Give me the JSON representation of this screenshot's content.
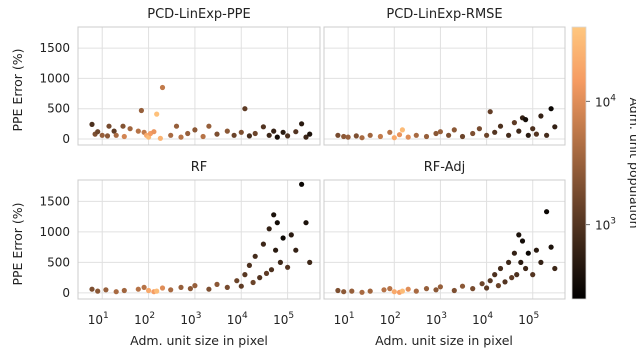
{
  "chart_data": {
    "type": "scatter",
    "x_scale": "log",
    "xlim": [
      3,
      500000
    ],
    "ylim": [
      -100,
      1850
    ],
    "x_ticks": [
      10,
      100,
      1000,
      10000,
      100000
    ],
    "y_ticks": [
      0,
      500,
      1000,
      1500
    ],
    "xlabel": "Adm. unit size in pixel",
    "ylabel": "PPE Error (%)",
    "grid": true,
    "colorbar": {
      "label": "Adm. unit population",
      "scale": "log",
      "range": [
        250,
        40000
      ],
      "ticks": [
        {
          "value": 1000,
          "base": "10",
          "exp": "3"
        },
        {
          "value": 10000,
          "base": "10",
          "exp": "4"
        }
      ],
      "colormap": "copper",
      "colors": [
        "#000000",
        "#3c2618",
        "#7a4d30",
        "#b97548",
        "#f59b62",
        "#ffc77f"
      ]
    },
    "panels": [
      {
        "title": "PCD-LinExp-PPE",
        "points": [
          [
            6,
            240,
            900
          ],
          [
            7,
            80,
            2000
          ],
          [
            8,
            120,
            1500
          ],
          [
            10,
            60,
            3000
          ],
          [
            13,
            50,
            2500
          ],
          [
            14,
            210,
            1800
          ],
          [
            18,
            130,
            1200
          ],
          [
            20,
            60,
            4000
          ],
          [
            28,
            210,
            2200
          ],
          [
            30,
            40,
            8000
          ],
          [
            40,
            170,
            3500
          ],
          [
            60,
            130,
            5000
          ],
          [
            70,
            470,
            3000
          ],
          [
            80,
            110,
            6000
          ],
          [
            90,
            60,
            20000
          ],
          [
            100,
            30,
            30000
          ],
          [
            110,
            90,
            15000
          ],
          [
            130,
            120,
            12000
          ],
          [
            150,
            410,
            35000
          ],
          [
            180,
            10,
            25000
          ],
          [
            200,
            850,
            6000
          ],
          [
            300,
            60,
            4000
          ],
          [
            400,
            210,
            3000
          ],
          [
            500,
            30,
            5000
          ],
          [
            700,
            90,
            3000
          ],
          [
            1000,
            150,
            2500
          ],
          [
            1500,
            40,
            5000
          ],
          [
            2000,
            210,
            3000
          ],
          [
            3000,
            80,
            2000
          ],
          [
            5000,
            130,
            2500
          ],
          [
            7000,
            60,
            1500
          ],
          [
            10000,
            110,
            2000
          ],
          [
            12000,
            500,
            1200
          ],
          [
            15000,
            50,
            800
          ],
          [
            20000,
            90,
            1500
          ],
          [
            30000,
            200,
            1000
          ],
          [
            40000,
            60,
            700
          ],
          [
            50000,
            130,
            600
          ],
          [
            60000,
            30,
            350
          ],
          [
            80000,
            110,
            500
          ],
          [
            100000,
            50,
            900
          ],
          [
            150000,
            120,
            1000
          ],
          [
            200000,
            250,
            500
          ],
          [
            250000,
            30,
            700
          ],
          [
            300000,
            80,
            400
          ]
        ]
      },
      {
        "title": "PCD-LinExp-RMSE",
        "points": [
          [
            6,
            60,
            1800
          ],
          [
            8,
            40,
            2500
          ],
          [
            10,
            30,
            3000
          ],
          [
            15,
            50,
            2000
          ],
          [
            20,
            20,
            4000
          ],
          [
            30,
            60,
            3500
          ],
          [
            50,
            40,
            6000
          ],
          [
            80,
            110,
            5000
          ],
          [
            100,
            20,
            20000
          ],
          [
            130,
            70,
            12000
          ],
          [
            150,
            150,
            30000
          ],
          [
            200,
            30,
            10000
          ],
          [
            300,
            60,
            4000
          ],
          [
            500,
            40,
            3000
          ],
          [
            800,
            90,
            2500
          ],
          [
            1000,
            120,
            3000
          ],
          [
            1500,
            60,
            2000
          ],
          [
            2000,
            150,
            2500
          ],
          [
            3000,
            40,
            1500
          ],
          [
            5000,
            90,
            2000
          ],
          [
            7000,
            170,
            1800
          ],
          [
            10000,
            60,
            1500
          ],
          [
            12000,
            450,
            1300
          ],
          [
            15000,
            110,
            1000
          ],
          [
            20000,
            210,
            900
          ],
          [
            30000,
            60,
            800
          ],
          [
            40000,
            270,
            1200
          ],
          [
            50000,
            130,
            700
          ],
          [
            60000,
            350,
            600
          ],
          [
            70000,
            320,
            350
          ],
          [
            80000,
            60,
            500
          ],
          [
            100000,
            170,
            900
          ],
          [
            120000,
            80,
            1000
          ],
          [
            150000,
            380,
            600
          ],
          [
            200000,
            60,
            800
          ],
          [
            250000,
            500,
            300
          ],
          [
            300000,
            200,
            600
          ]
        ]
      },
      {
        "title": "RF",
        "points": [
          [
            6,
            60,
            2000
          ],
          [
            8,
            30,
            2500
          ],
          [
            12,
            50,
            3000
          ],
          [
            20,
            20,
            4000
          ],
          [
            30,
            40,
            3500
          ],
          [
            60,
            60,
            5000
          ],
          [
            80,
            90,
            5000
          ],
          [
            100,
            40,
            20000
          ],
          [
            130,
            20,
            15000
          ],
          [
            150,
            30,
            30000
          ],
          [
            200,
            80,
            10000
          ],
          [
            300,
            50,
            4000
          ],
          [
            500,
            90,
            3000
          ],
          [
            800,
            70,
            2500
          ],
          [
            1000,
            120,
            3000
          ],
          [
            2000,
            60,
            2000
          ],
          [
            3000,
            140,
            2500
          ],
          [
            5000,
            90,
            1800
          ],
          [
            8000,
            200,
            1500
          ],
          [
            10000,
            110,
            1200
          ],
          [
            12000,
            300,
            1100
          ],
          [
            15000,
            450,
            900
          ],
          [
            18000,
            170,
            1500
          ],
          [
            20000,
            600,
            800
          ],
          [
            25000,
            250,
            1000
          ],
          [
            30000,
            800,
            700
          ],
          [
            35000,
            320,
            1200
          ],
          [
            40000,
            1050,
            600
          ],
          [
            45000,
            380,
            900
          ],
          [
            50000,
            1280,
            400
          ],
          [
            55000,
            700,
            500
          ],
          [
            60000,
            1150,
            350
          ],
          [
            70000,
            500,
            700
          ],
          [
            80000,
            900,
            300
          ],
          [
            100000,
            420,
            1000
          ],
          [
            120000,
            950,
            500
          ],
          [
            150000,
            700,
            600
          ],
          [
            200000,
            1780,
            300
          ],
          [
            250000,
            1150,
            400
          ],
          [
            300000,
            500,
            700
          ]
        ]
      },
      {
        "title": "RF-Adj",
        "points": [
          [
            6,
            40,
            2000
          ],
          [
            8,
            20,
            2500
          ],
          [
            12,
            30,
            3000
          ],
          [
            20,
            10,
            4000
          ],
          [
            30,
            30,
            3500
          ],
          [
            60,
            50,
            5000
          ],
          [
            80,
            70,
            5000
          ],
          [
            100,
            20,
            20000
          ],
          [
            130,
            10,
            15000
          ],
          [
            150,
            30,
            30000
          ],
          [
            200,
            60,
            10000
          ],
          [
            300,
            30,
            4000
          ],
          [
            500,
            70,
            3000
          ],
          [
            800,
            50,
            2500
          ],
          [
            1000,
            100,
            3000
          ],
          [
            2000,
            40,
            2000
          ],
          [
            3000,
            110,
            2500
          ],
          [
            5000,
            70,
            1800
          ],
          [
            8000,
            150,
            1500
          ],
          [
            10000,
            80,
            1200
          ],
          [
            12000,
            200,
            1100
          ],
          [
            15000,
            300,
            900
          ],
          [
            18000,
            120,
            1500
          ],
          [
            20000,
            400,
            800
          ],
          [
            25000,
            180,
            1000
          ],
          [
            30000,
            500,
            700
          ],
          [
            35000,
            250,
            1200
          ],
          [
            40000,
            650,
            600
          ],
          [
            45000,
            300,
            900
          ],
          [
            50000,
            950,
            400
          ],
          [
            55000,
            500,
            500
          ],
          [
            60000,
            850,
            350
          ],
          [
            70000,
            400,
            700
          ],
          [
            80000,
            650,
            300
          ],
          [
            100000,
            300,
            1000
          ],
          [
            120000,
            700,
            500
          ],
          [
            150000,
            500,
            600
          ],
          [
            200000,
            1330,
            300
          ],
          [
            250000,
            750,
            400
          ],
          [
            300000,
            400,
            700
          ]
        ]
      }
    ]
  }
}
